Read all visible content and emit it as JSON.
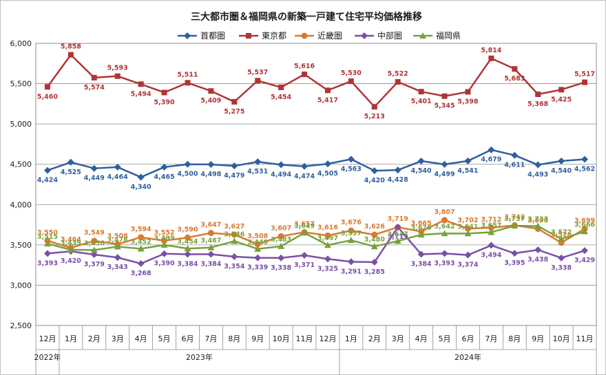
{
  "chart_data": {
    "type": "line",
    "title": "三大都市圏＆福岡県の新築一戸建て住宅平均価格推移",
    "categories": [
      "12月",
      "1月",
      "2月",
      "3月",
      "4月",
      "5月",
      "6月",
      "7月",
      "8月",
      "9月",
      "10月",
      "11月",
      "12月",
      "1月",
      "2月",
      "3月",
      "4月",
      "5月",
      "6月",
      "7月",
      "8月",
      "9月",
      "10月",
      "11月"
    ],
    "year_groups": [
      {
        "label": "2022年",
        "start": 0,
        "end": 0
      },
      {
        "label": "2023年",
        "start": 1,
        "end": 12
      },
      {
        "label": "2024年",
        "start": 13,
        "end": 23
      }
    ],
    "yticks": [
      "2,500",
      "3,000",
      "3,500",
      "4,000",
      "4,500",
      "5,000",
      "5,500",
      "6,000"
    ],
    "ylim": [
      2500,
      6000
    ],
    "grid": true,
    "legend_position": "top",
    "series": [
      {
        "name": "首都圏",
        "color": "#2e5fa0",
        "marker": "diamond",
        "values": [
          4424,
          4525,
          4449,
          4464,
          4340,
          4465,
          4500,
          4498,
          4479,
          4531,
          4494,
          4474,
          4505,
          4563,
          4420,
          4428,
          4540,
          4499,
          4541,
          4679,
          4611,
          4493,
          4540,
          4562
        ],
        "labels": [
          "4,424",
          "4,525",
          "4,449",
          "4,464",
          "4,340",
          "4,465",
          "4,500",
          "4,498",
          "4,479",
          "4,531",
          "4,494",
          "4,474",
          "4,505",
          "4,563",
          "4,420",
          "4,428",
          "4,540",
          "4,499",
          "4,541",
          "4,679",
          "4,611",
          "4,493",
          "4,540",
          "4,562"
        ]
      },
      {
        "name": "東京都",
        "color": "#b03436",
        "marker": "square",
        "values": [
          5460,
          5858,
          5574,
          5593,
          5494,
          5390,
          5511,
          5409,
          5275,
          5537,
          5454,
          5616,
          5417,
          5530,
          5213,
          5522,
          5401,
          5345,
          5398,
          5814,
          5683,
          5368,
          5425,
          5517
        ],
        "labels": [
          "5,460",
          "5,858",
          "5,574",
          "5,593",
          "5,494",
          "5,390",
          "5,511",
          "5,409",
          "5,275",
          "5,537",
          "5,454",
          "5,616",
          "5,417",
          "5,530",
          "5,213",
          "5,522",
          "5,401",
          "5,345",
          "5,398",
          "5,814",
          "5,683",
          "5,368",
          "5,425",
          "5,517"
        ]
      },
      {
        "name": "近畿圏",
        "color": "#d97a30",
        "marker": "circle",
        "values": [
          3550,
          3464,
          3549,
          3508,
          3594,
          3552,
          3590,
          3647,
          3627,
          3508,
          3607,
          3657,
          3616,
          3676,
          3626,
          3719,
          3665,
          3807,
          3702,
          3712,
          3742,
          3699,
          3526,
          3699
        ],
        "labels": [
          "3,550",
          "3,464",
          "3,549",
          "3,508",
          "3,594",
          "3,552",
          "3,590",
          "3,647",
          "3,627",
          "3,508",
          "3,607",
          "3,657",
          "3,616",
          "3,676",
          "3,626",
          "3,719",
          "3,665",
          "3,807",
          "3,702",
          "3,712",
          "3,742",
          "3,699",
          "3,526",
          "3,699"
        ]
      },
      {
        "name": "中部圏",
        "color": "#7b4fa6",
        "marker": "diamond",
        "values": [
          3393,
          3420,
          3379,
          3343,
          3268,
          3390,
          3384,
          3384,
          3354,
          3339,
          3338,
          3371,
          3325,
          3291,
          3285,
          3719,
          3384,
          3393,
          3374,
          3494,
          3395,
          3438,
          3338,
          3429
        ],
        "labels": [
          "3,393",
          "3,420",
          "3,379",
          "3,343",
          "3,268",
          "3,390",
          "3,384",
          "3,384",
          "3,354",
          "3,339",
          "3,338",
          "3,371",
          "3,325",
          "3,291",
          "3,285",
          "3,719",
          "3,384",
          "3,393",
          "3,374",
          "3,494",
          "3,395",
          "3,438",
          "3,338",
          "3,429"
        ]
      },
      {
        "name": "福岡県",
        "color": "#77a13a",
        "marker": "triangle",
        "values": [
          3515,
          3439,
          3436,
          3478,
          3452,
          3499,
          3454,
          3467,
          3546,
          3449,
          3483,
          3649,
          3497,
          3557,
          3480,
          3547,
          3626,
          3642,
          3641,
          3657,
          3737,
          3733,
          3572,
          3666
        ],
        "labels": [
          "3,515",
          "3,439",
          "3,436",
          "3,478",
          "3,452",
          "3,499",
          "3,454",
          "3,467",
          "3,546",
          "3,449",
          "3,483",
          "3,649",
          "3,497",
          "3,557",
          "3,480",
          "3,547",
          "3,626",
          "3,642",
          "3,641",
          "3,657",
          "3,737",
          "3,733",
          "3,572",
          "3,666"
        ]
      }
    ]
  }
}
